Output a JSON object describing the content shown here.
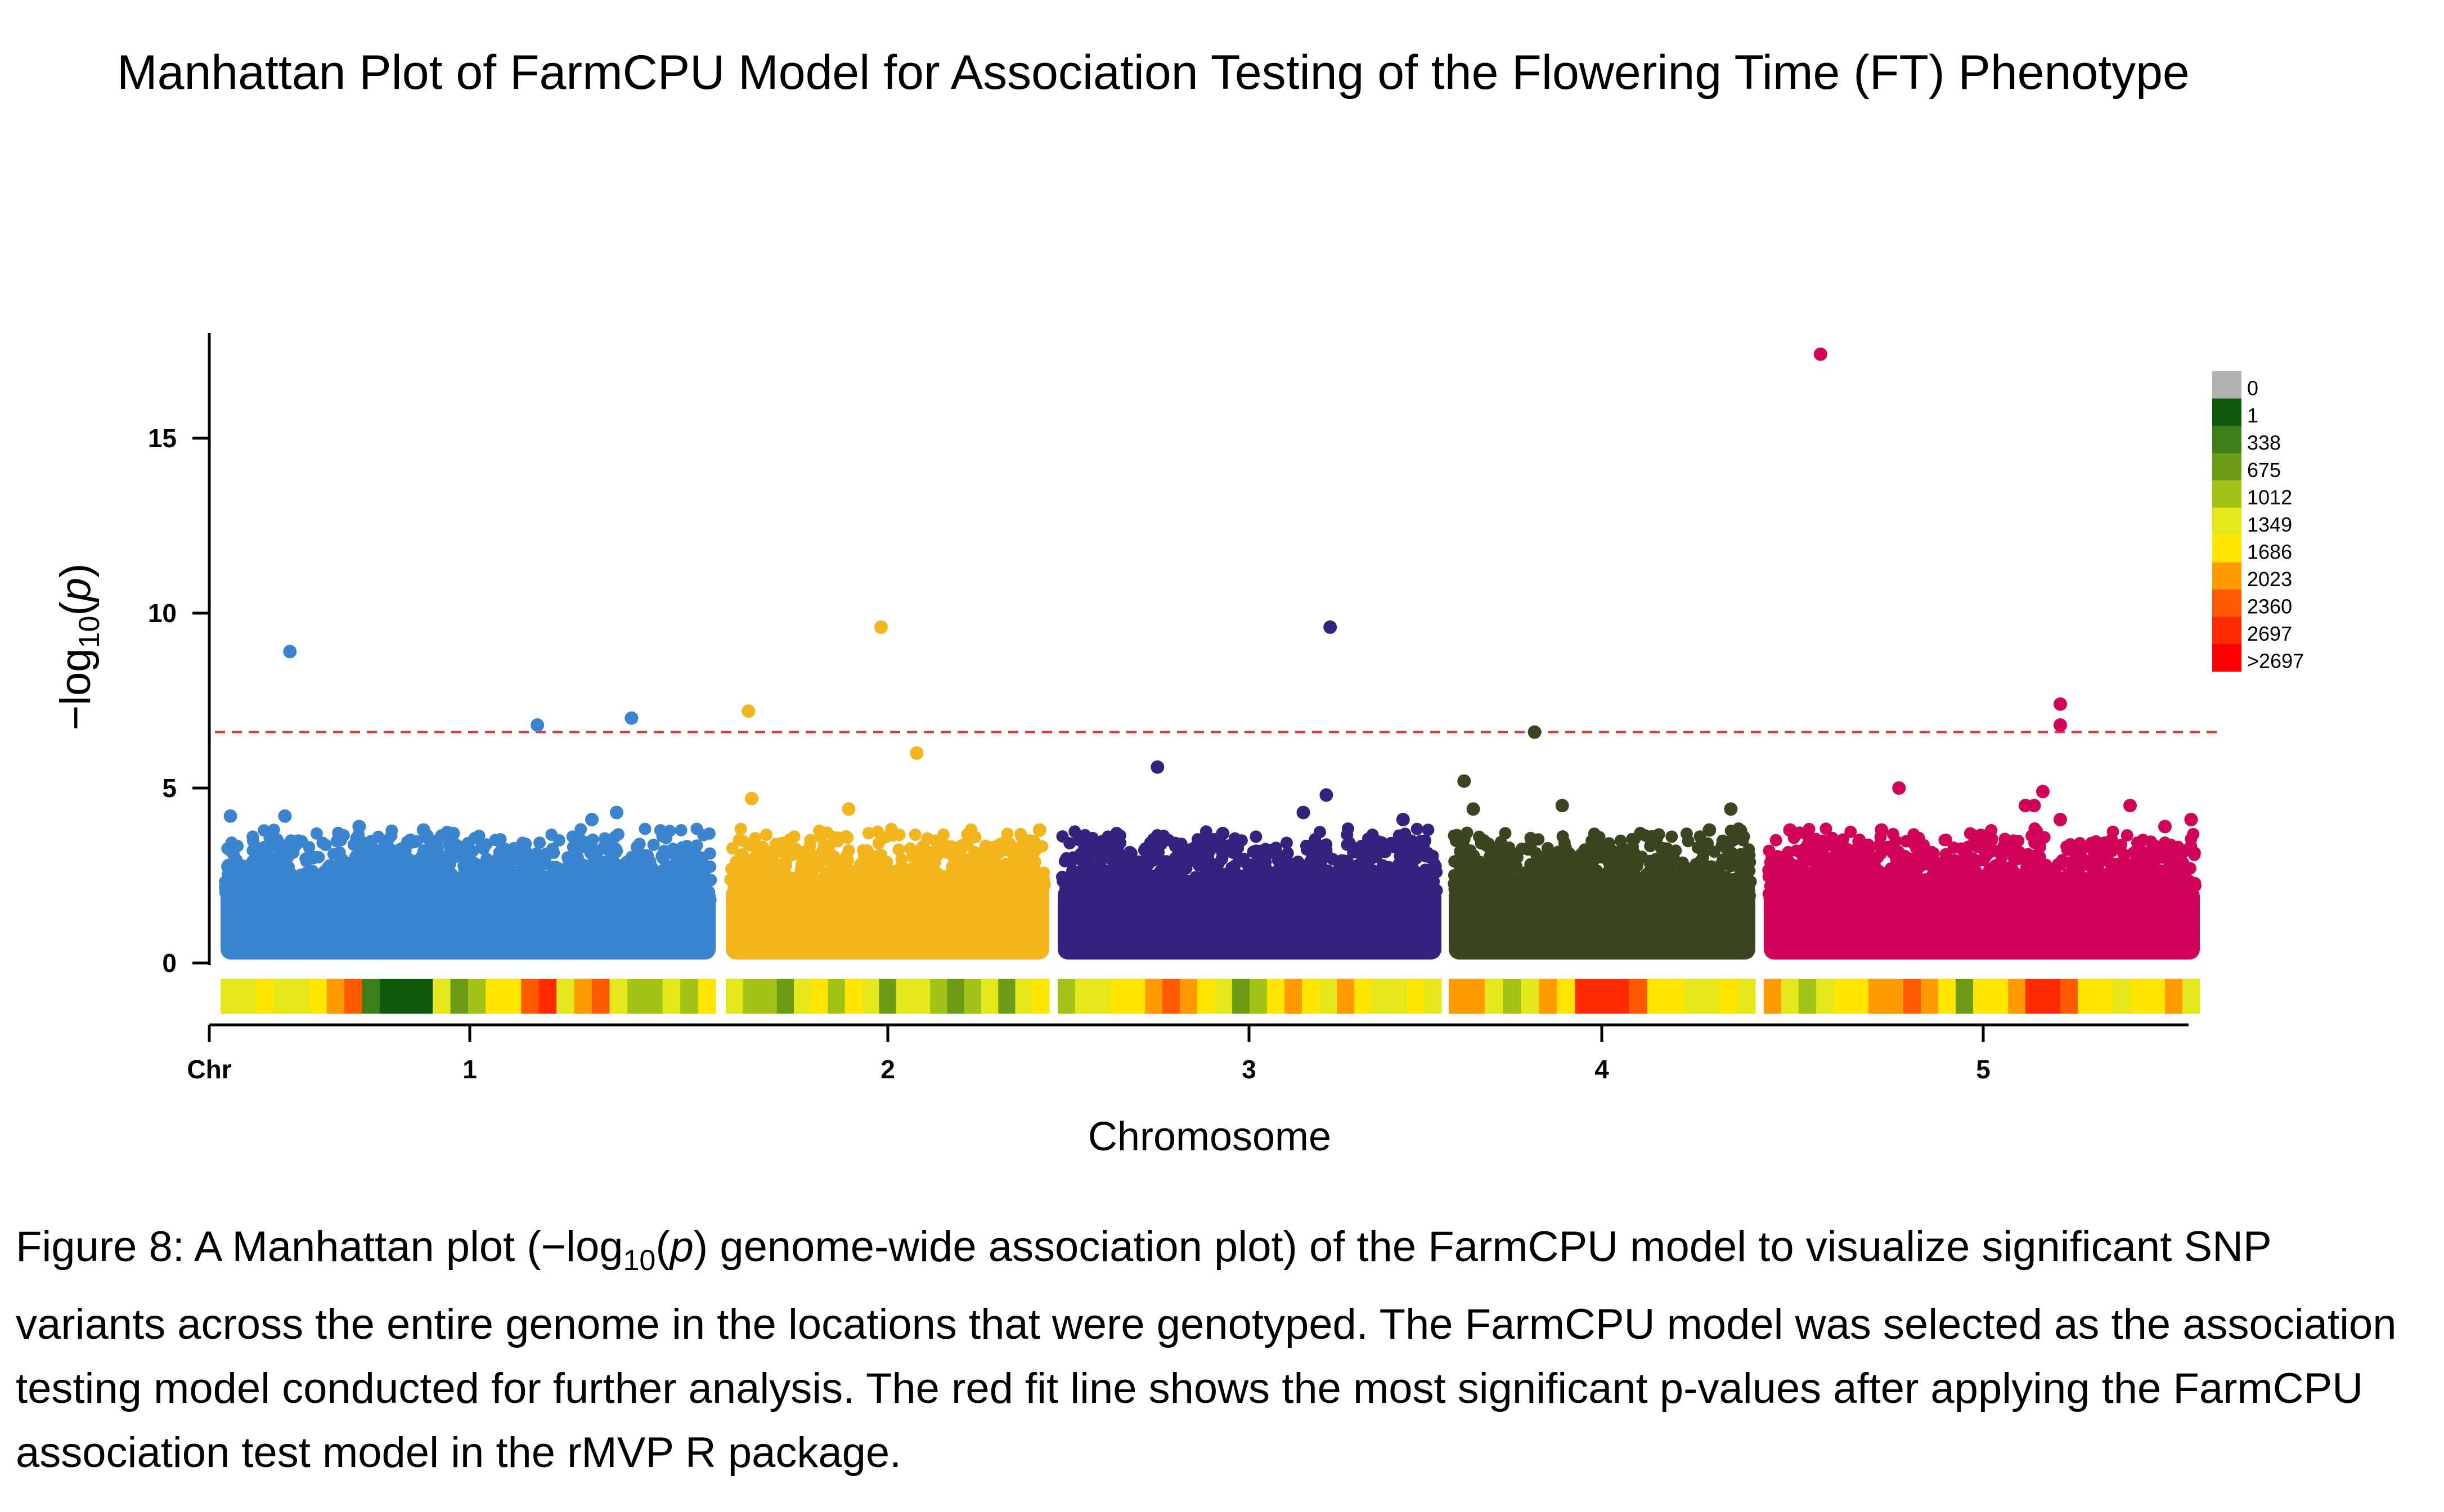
{
  "title": "Manhattan Plot of FarmCPU Model for Association Testing of the Flowering Time (FT) Phenotype",
  "caption": {
    "prefix": "Figure 8: A Manhattan plot (−log",
    "sub": "10",
    "paren_open": "(",
    "p": "p",
    "rest": ") genome-wide association plot) of the FarmCPU model to visualize significant SNP variants across the entire genome in the locations that were genotyped. The FarmCPU model was selected as the association testing model conducted for further analysis. The red fit line shows the most significant p-values after applying the FarmCPU association test model in the rMVP R package."
  },
  "chart_data": {
    "type": "scatter",
    "xlabel": "Chromosome",
    "ylabel": "−log10(p)",
    "ylim": [
      0,
      18
    ],
    "yticks": [
      0,
      5,
      10,
      15
    ],
    "x_tick_labels": [
      "Chr",
      "1",
      "2",
      "3",
      "4",
      "5"
    ],
    "threshold": 6.6,
    "threshold_color": "#e8323c",
    "chromosomes": [
      {
        "name": "1",
        "color": "#3a84d0",
        "density_bins": [
          1400,
          1500,
          1800,
          1600,
          1400,
          1700,
          2100,
          2500,
          600,
          100,
          1,
          100,
          1400,
          1000,
          1300,
          1700,
          1900,
          2400,
          2700,
          1500,
          2200,
          2500,
          1400,
          1300,
          1100,
          1500,
          1200,
          1800
        ]
      },
      {
        "name": "2",
        "color": "#f2b51c",
        "density_bins": [
          1500,
          1300,
          1200,
          700,
          1500,
          1700,
          1200,
          1900,
          1600,
          900,
          1400,
          1600,
          1100,
          900,
          1200,
          1500,
          800,
          1400,
          1700
        ]
      },
      {
        "name": "3",
        "color": "#33237f",
        "density_bins": [
          1300,
          1600,
          1500,
          1800,
          1700,
          2100,
          2400,
          2200,
          2000,
          1600,
          900,
          1200,
          2000,
          2200,
          1800,
          1500,
          2100,
          1700,
          1400,
          1500,
          1800,
          1600
        ]
      },
      {
        "name": "4",
        "color": "#3c4420",
        "density_bins": [
          2200,
          2100,
          1400,
          1100,
          1600,
          2200,
          2000,
          2700,
          2800,
          2800,
          2500,
          1900,
          1700,
          1600,
          1400,
          1900,
          1500
        ]
      },
      {
        "name": "5",
        "color": "#d2045a",
        "density_bins": [
          2200,
          1500,
          1300,
          1600,
          1900,
          2000,
          2100,
          2200,
          2500,
          2300,
          1800,
          900,
          1700,
          2000,
          2200,
          2700,
          2800,
          2400,
          1900,
          1700,
          1600,
          2000,
          1800,
          2100,
          1500
        ]
      }
    ],
    "highlight_points": [
      {
        "chr": "1",
        "pos": 0.14,
        "y": 8.9
      },
      {
        "chr": "1",
        "pos": 0.64,
        "y": 6.8
      },
      {
        "chr": "1",
        "pos": 0.83,
        "y": 7.0
      },
      {
        "chr": "1",
        "pos": 0.02,
        "y": 4.2
      },
      {
        "chr": "1",
        "pos": 0.13,
        "y": 4.2
      },
      {
        "chr": "1",
        "pos": 0.28,
        "y": 3.9
      },
      {
        "chr": "1",
        "pos": 0.41,
        "y": 3.8
      },
      {
        "chr": "1",
        "pos": 0.47,
        "y": 3.7
      },
      {
        "chr": "1",
        "pos": 0.75,
        "y": 4.1
      },
      {
        "chr": "1",
        "pos": 0.8,
        "y": 4.3
      },
      {
        "chr": "2",
        "pos": 0.07,
        "y": 7.2
      },
      {
        "chr": "2",
        "pos": 0.48,
        "y": 9.6
      },
      {
        "chr": "2",
        "pos": 0.59,
        "y": 6.0
      },
      {
        "chr": "2",
        "pos": 0.08,
        "y": 4.7
      },
      {
        "chr": "2",
        "pos": 0.38,
        "y": 4.4
      },
      {
        "chr": "2",
        "pos": 0.97,
        "y": 3.8
      },
      {
        "chr": "3",
        "pos": 0.26,
        "y": 5.6
      },
      {
        "chr": "3",
        "pos": 0.71,
        "y": 9.6
      },
      {
        "chr": "3",
        "pos": 0.7,
        "y": 4.8
      },
      {
        "chr": "3",
        "pos": 0.64,
        "y": 4.3
      },
      {
        "chr": "3",
        "pos": 0.9,
        "y": 4.1
      },
      {
        "chr": "3",
        "pos": 0.43,
        "y": 3.7
      },
      {
        "chr": "4",
        "pos": 0.28,
        "y": 6.6
      },
      {
        "chr": "4",
        "pos": 0.05,
        "y": 5.2
      },
      {
        "chr": "4",
        "pos": 0.08,
        "y": 4.4
      },
      {
        "chr": "4",
        "pos": 0.37,
        "y": 4.5
      },
      {
        "chr": "4",
        "pos": 0.92,
        "y": 4.4
      },
      {
        "chr": "4",
        "pos": 0.85,
        "y": 3.8
      },
      {
        "chr": "5",
        "pos": 0.13,
        "y": 17.4
      },
      {
        "chr": "5",
        "pos": 0.68,
        "y": 7.4
      },
      {
        "chr": "5",
        "pos": 0.68,
        "y": 6.8
      },
      {
        "chr": "5",
        "pos": 0.31,
        "y": 5.0
      },
      {
        "chr": "5",
        "pos": 0.64,
        "y": 4.9
      },
      {
        "chr": "5",
        "pos": 0.62,
        "y": 4.5
      },
      {
        "chr": "5",
        "pos": 0.6,
        "y": 4.5
      },
      {
        "chr": "5",
        "pos": 0.84,
        "y": 4.5
      },
      {
        "chr": "5",
        "pos": 0.68,
        "y": 4.1
      },
      {
        "chr": "5",
        "pos": 0.98,
        "y": 4.1
      },
      {
        "chr": "5",
        "pos": 0.92,
        "y": 3.9
      },
      {
        "chr": "5",
        "pos": 0.06,
        "y": 3.8
      },
      {
        "chr": "5",
        "pos": 0.27,
        "y": 3.8
      }
    ],
    "density_legend": [
      {
        "label": "0",
        "color": "#b0b0b0"
      },
      {
        "label": "1",
        "color": "#0d5a0d"
      },
      {
        "label": "338",
        "color": "#3c7f16"
      },
      {
        "label": "675",
        "color": "#6c9b16"
      },
      {
        "label": "1012",
        "color": "#a3c316"
      },
      {
        "label": "1349",
        "color": "#e4e81a"
      },
      {
        "label": "1686",
        "color": "#ffe600"
      },
      {
        "label": "2023",
        "color": "#ff9a00"
      },
      {
        "label": "2360",
        "color": "#ff5a00"
      },
      {
        "label": "2697",
        "color": "#ff2a00"
      },
      {
        "label": ">2697",
        "color": "#ff0000"
      }
    ]
  }
}
